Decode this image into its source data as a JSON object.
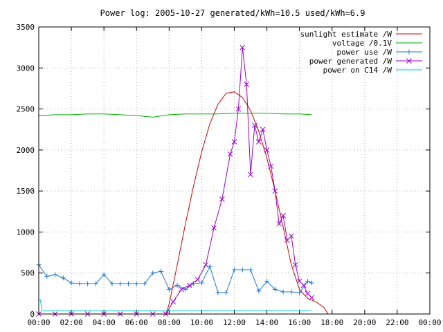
{
  "chart_data": {
    "type": "line",
    "title": "Power log: 2005-10-27 generated/kWh=10.5 used/kWh=6.9",
    "xlabel": "",
    "ylabel": "",
    "x_range": [
      "00:00",
      "24:00"
    ],
    "x_ticks": [
      "00:00",
      "02:00",
      "04:00",
      "06:00",
      "08:00",
      "10:00",
      "12:00",
      "14:00",
      "16:00",
      "18:00",
      "20:00",
      "22:00",
      "00:00"
    ],
    "ylim": [
      0,
      3500
    ],
    "y_ticks": [
      0,
      500,
      1000,
      1500,
      2000,
      2500,
      3000,
      3500
    ],
    "grid": true,
    "legend_position": "top-right",
    "series": [
      {
        "name": "sunlight estimate /W",
        "color": "#cc0000",
        "marker": "none",
        "x": [
          "07:48",
          "08:00",
          "08:30",
          "09:00",
          "09:30",
          "10:00",
          "10:30",
          "11:00",
          "11:30",
          "12:00",
          "12:30",
          "13:00",
          "13:30",
          "14:00",
          "14:30",
          "15:00",
          "15:30",
          "16:00",
          "16:30",
          "17:00",
          "17:30",
          "17:45"
        ],
        "values": [
          0,
          120,
          600,
          1100,
          1560,
          1980,
          2320,
          2560,
          2690,
          2710,
          2640,
          2480,
          2230,
          1900,
          1500,
          1060,
          600,
          300,
          190,
          150,
          80,
          0
        ]
      },
      {
        "name": "voltage /0.1V",
        "color": "#00aa00",
        "marker": "none",
        "x": [
          "00:00",
          "01:00",
          "02:00",
          "03:00",
          "04:00",
          "05:00",
          "06:00",
          "07:00",
          "08:00",
          "09:00",
          "10:00",
          "11:00",
          "12:00",
          "13:00",
          "14:00",
          "15:00",
          "16:00",
          "16:45"
        ],
        "values": [
          2420,
          2430,
          2430,
          2440,
          2440,
          2430,
          2420,
          2400,
          2430,
          2440,
          2440,
          2440,
          2450,
          2450,
          2450,
          2440,
          2440,
          2430
        ]
      },
      {
        "name": "power use /W",
        "color": "#1f77d0",
        "marker": "+",
        "x": [
          "00:00",
          "00:30",
          "01:00",
          "01:30",
          "02:00",
          "02:30",
          "03:00",
          "03:30",
          "04:00",
          "04:30",
          "05:00",
          "05:30",
          "06:00",
          "06:30",
          "07:00",
          "07:30",
          "08:00",
          "08:30",
          "09:00",
          "09:30",
          "10:00",
          "10:30",
          "11:00",
          "11:30",
          "12:00",
          "12:30",
          "13:00",
          "13:30",
          "14:00",
          "14:30",
          "15:00",
          "15:30",
          "16:00",
          "16:30",
          "16:45"
        ],
        "values": [
          600,
          460,
          480,
          440,
          380,
          370,
          370,
          370,
          480,
          370,
          370,
          370,
          370,
          370,
          500,
          520,
          300,
          350,
          300,
          370,
          380,
          580,
          260,
          260,
          540,
          540,
          540,
          280,
          400,
          300,
          270,
          270,
          260,
          400,
          380
        ]
      },
      {
        "name": "power generated /W",
        "color": "#9900cc",
        "marker": "x",
        "x": [
          "00:00",
          "01:00",
          "02:00",
          "03:00",
          "04:00",
          "05:00",
          "06:00",
          "07:00",
          "07:48",
          "08:15",
          "08:45",
          "09:15",
          "09:45",
          "10:15",
          "10:45",
          "11:15",
          "11:45",
          "12:00",
          "12:15",
          "12:30",
          "12:45",
          "13:00",
          "13:15",
          "13:30",
          "13:45",
          "14:00",
          "14:15",
          "14:30",
          "14:45",
          "15:00",
          "15:15",
          "15:30",
          "15:45",
          "16:00",
          "16:15",
          "16:30",
          "16:45"
        ],
        "values": [
          0,
          0,
          0,
          0,
          0,
          0,
          0,
          0,
          0,
          150,
          300,
          350,
          420,
          600,
          1050,
          1400,
          1950,
          2100,
          2500,
          3250,
          2800,
          1700,
          2300,
          2100,
          2250,
          2000,
          1800,
          1500,
          1100,
          1200,
          900,
          950,
          600,
          400,
          350,
          250,
          200
        ]
      },
      {
        "name": "power on C14 /W",
        "color": "#00cccc",
        "marker": "none",
        "x": [
          "00:00",
          "00:06",
          "00:12",
          "01:00",
          "04:00",
          "08:00",
          "12:00",
          "16:00",
          "16:45"
        ],
        "values": [
          170,
          170,
          40,
          40,
          40,
          40,
          40,
          40,
          40
        ]
      }
    ]
  }
}
